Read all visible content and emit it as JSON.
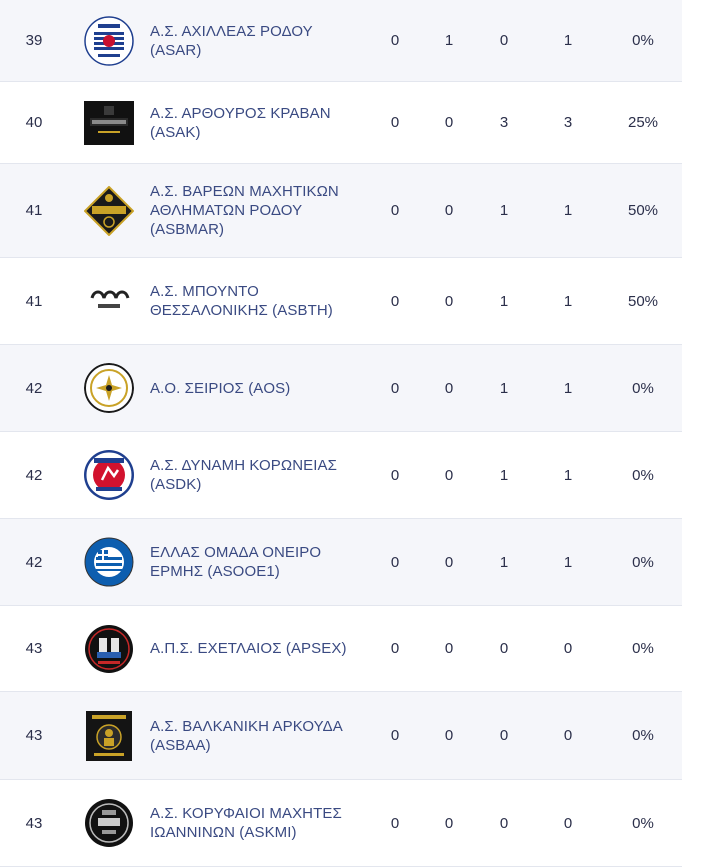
{
  "rows": [
    {
      "rank": "39",
      "team": "Α.Σ. ΑΧΙΛΛΕΑΣ ΡΟΔΟΥ (ASAR)",
      "c1": "0",
      "c2": "1",
      "c3": "0",
      "c4": "1",
      "pct": "0%",
      "logo": "achilleas-rodou-logo"
    },
    {
      "rank": "40",
      "team": "Α.Σ. ΑΡΘΟΥΡΟΣ ΚΡΑΒΑΝ (ASAK)",
      "c1": "0",
      "c2": "0",
      "c3": "3",
      "c4": "3",
      "pct": "25%",
      "logo": "underdog-logo"
    },
    {
      "rank": "41",
      "team": "Α.Σ. ΒΑΡΕΩΝ ΜΑΧΗΤΙΚΩΝ ΑΘΛΗΜΑΤΩΝ ΡΟΔΟΥ (ASBMAR)",
      "c1": "0",
      "c2": "0",
      "c3": "1",
      "c4": "1",
      "pct": "50%",
      "logo": "vareon-machitikon-logo"
    },
    {
      "rank": "41",
      "team": "Α.Σ. ΜΠΟΥΝΤΟ ΘΕΣΣΑΛΟΝΙΚΗΣ (ASBTH)",
      "c1": "0",
      "c2": "0",
      "c3": "1",
      "c4": "1",
      "pct": "50%",
      "logo": "budo-fighters-logo"
    },
    {
      "rank": "42",
      "team": "Α.Ο. ΣΕΙΡΙΟΣ (AOS)",
      "c1": "0",
      "c2": "0",
      "c3": "1",
      "c4": "1",
      "pct": "0%",
      "logo": "seirios-logo"
    },
    {
      "rank": "42",
      "team": "Α.Σ. ΔΥΝΑΜΗ ΚΟΡΩΝΕΙΑΣ (ASDK)",
      "c1": "0",
      "c2": "0",
      "c3": "1",
      "c4": "1",
      "pct": "0%",
      "logo": "dynami-koroneias-logo"
    },
    {
      "rank": "42",
      "team": "ΕΛΛΑΣ ΟΜΑΔΑ ΟΝΕΙΡΟ ΕΡΜΗΣ (ASOOE1)",
      "c1": "0",
      "c2": "0",
      "c3": "1",
      "c4": "1",
      "pct": "0%",
      "logo": "ellas-omada-logo"
    },
    {
      "rank": "43",
      "team": "Α.Π.Σ. ΕΧΕΤΛΑΙΟΣ (APSEX)",
      "c1": "0",
      "c2": "0",
      "c3": "0",
      "c4": "0",
      "pct": "0%",
      "logo": "echetlaios-logo"
    },
    {
      "rank": "43",
      "team": "Α.Σ. ΒΑΛΚΑΝΙΚΗ ΑΡΚΟΥΔΑ (ASBAA)",
      "c1": "0",
      "c2": "0",
      "c3": "0",
      "c4": "0",
      "pct": "0%",
      "logo": "balkan-bear-logo"
    },
    {
      "rank": "43",
      "team": "Α.Σ. ΚΟΡΥΦΑΙΟΙ ΜΑΧΗΤΕΣ ΙΩΑΝΝΙΝΩΝ (ASKMI)",
      "c1": "0",
      "c2": "0",
      "c3": "0",
      "c4": "0",
      "pct": "0%",
      "logo": "koryfaioi-machites-logo"
    }
  ],
  "colors": {
    "team_text": "#3a4a82",
    "number_text": "#2b2f4a",
    "shaded_row": "#f5f6fa",
    "divider": "#e3e6ee"
  }
}
